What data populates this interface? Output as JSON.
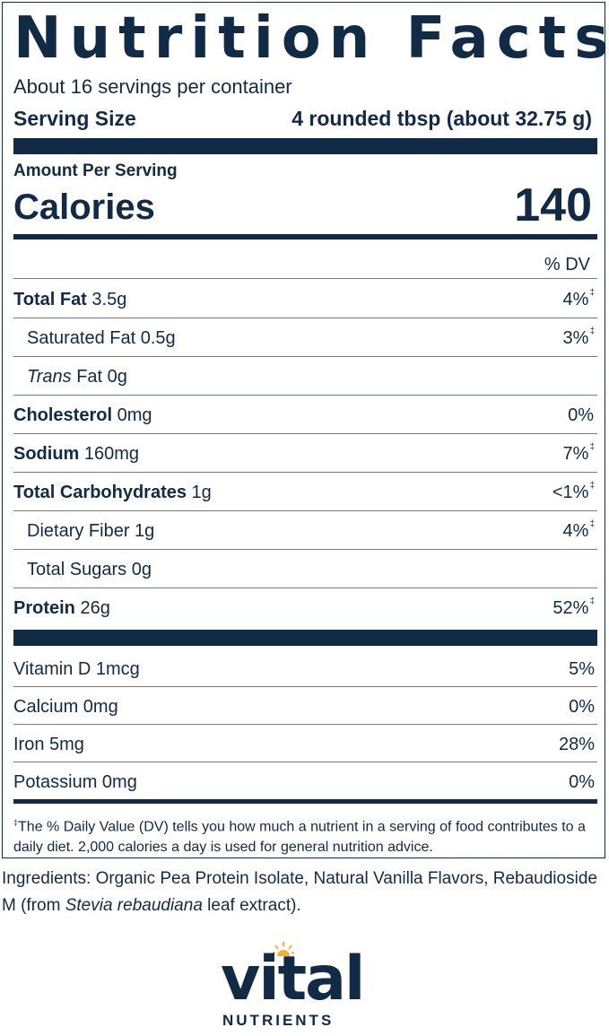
{
  "label": {
    "title": "Nutrition Facts",
    "servings_per_container": "About 16 servings per container",
    "serving_size_label": "Serving Size",
    "serving_size_value": "4 rounded tbsp (about 32.75 g)",
    "amount_per_serving": "Amount Per Serving",
    "calories_label": "Calories",
    "calories_value": "140",
    "dv_header": "% DV",
    "nutrients": [
      {
        "bold": "Total Fat",
        "amount": " 3.5g",
        "dv": "4%",
        "mark": "‡"
      },
      {
        "plain": "Saturated Fat",
        "amount": " 0.5g",
        "dv": "3%",
        "mark": "‡"
      },
      {
        "italic": "Trans",
        "plain": " Fat",
        "amount": " 0g",
        "dv": "",
        "mark": ""
      },
      {
        "bold": "Cholesterol",
        "amount": " 0mg",
        "dv": "0%",
        "mark": ""
      },
      {
        "bold": "Sodium",
        "amount": " 160mg",
        "dv": "7%",
        "mark": "‡"
      },
      {
        "bold": "Total Carbohydrates",
        "amount": " 1g",
        "dv": "<1%",
        "mark": "‡"
      },
      {
        "plain": "Dietary Fiber",
        "amount": " 1g",
        "dv": "4%",
        "mark": "‡"
      },
      {
        "plain": "Total Sugars",
        "amount": " 0g",
        "dv": "",
        "mark": ""
      },
      {
        "bold": "Protein",
        "amount": " 26g",
        "dv": "52%",
        "mark": "‡"
      }
    ],
    "minerals": [
      {
        "name": "Vitamin D",
        "amount": " 1mcg",
        "dv": "5%"
      },
      {
        "name": "Calcium",
        "amount": " 0mg",
        "dv": "0%"
      },
      {
        "name": "Iron",
        "amount": " 5mg",
        "dv": "28%"
      },
      {
        "name": "Potassium",
        "amount": " 0mg",
        "dv": "0%"
      }
    ],
    "footnote_mark": "‡",
    "footnote": "The % Daily Value (DV) tells you how much a nutrient in a serving of food contributes to a daily diet. 2,000 calories a day is used for general nutrition advice."
  },
  "ingredients": {
    "part1": "Ingredients: Organic Pea Protein Isolate, Natural Vanilla Flavors, Rebaudioside M (from ",
    "italic": "Stevia rebaudiana",
    "part2": " leaf extract)."
  },
  "brand": {
    "logo_word": "vital",
    "logo_sub": "NUTRIENTS",
    "navy": "#112a45",
    "sun_color": "#f2b230"
  }
}
